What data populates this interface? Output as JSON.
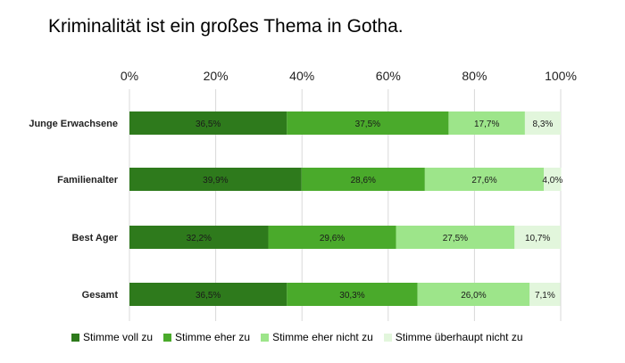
{
  "chart_data": {
    "type": "bar",
    "orientation": "horizontal",
    "stacked": true,
    "title": "Kriminalität ist ein großes Thema in Gotha.",
    "categories": [
      "Junge Erwachsene",
      "Familienalter",
      "Best Ager",
      "Gesamt"
    ],
    "series": [
      {
        "name": "Stimme voll zu",
        "color": "#2e7a1c",
        "values": [
          36.5,
          39.9,
          32.2,
          36.5
        ],
        "labels": [
          "36,5%",
          "39,9%",
          "32,2%",
          "36,5%"
        ]
      },
      {
        "name": "Stimme eher zu",
        "color": "#4aaa2b",
        "values": [
          37.5,
          28.6,
          29.6,
          30.3
        ],
        "labels": [
          "37,5%",
          "28,6%",
          "29,6%",
          "30,3%"
        ]
      },
      {
        "name": "Stimme eher nicht zu",
        "color": "#9de58a",
        "values": [
          17.7,
          27.6,
          27.5,
          26.0
        ],
        "labels": [
          "17,7%",
          "27,6%",
          "27,5%",
          "26,0%"
        ]
      },
      {
        "name": "Stimme überhaupt nicht zu",
        "color": "#e2f6dc",
        "values": [
          8.3,
          4.0,
          10.7,
          7.1
        ],
        "labels": [
          "8,3%",
          "4,0%",
          "10,7%",
          "7,1%"
        ]
      }
    ],
    "xlim": [
      0,
      100
    ],
    "xticks": [
      0,
      20,
      40,
      60,
      80,
      100
    ],
    "xtick_labels": [
      "0%",
      "20%",
      "40%",
      "60%",
      "80%",
      "100%"
    ],
    "axis_position": "top",
    "grid": true,
    "legend_position": "bottom"
  }
}
